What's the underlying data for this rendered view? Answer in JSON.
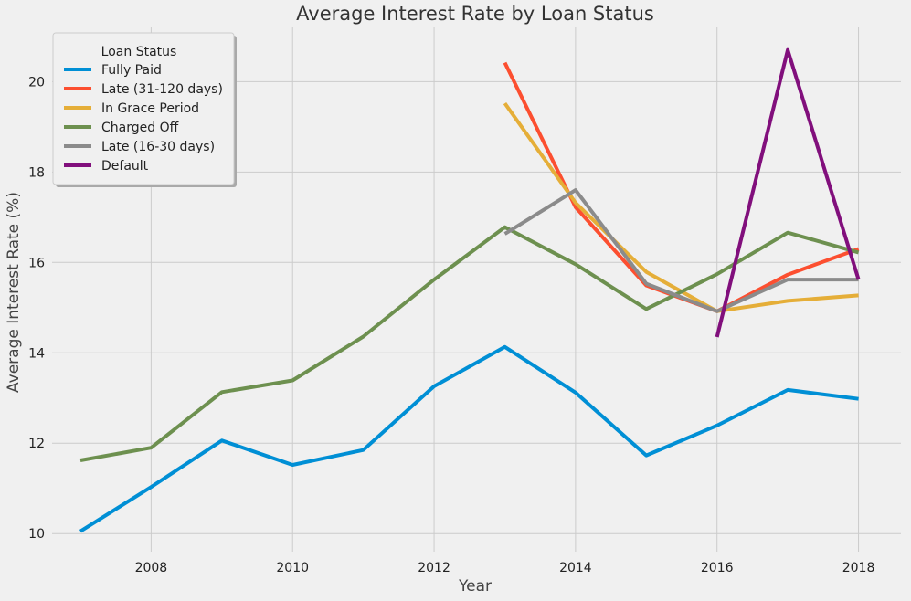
{
  "chart_data": {
    "type": "line",
    "title": "Average Interest Rate by Loan Status",
    "xlabel": "Year",
    "ylabel": "Average Interest Rate (%)",
    "xlim": [
      2006.6,
      2018.6
    ],
    "ylim": [
      9.6,
      21.2
    ],
    "xticks": [
      2008,
      2010,
      2012,
      2014,
      2016,
      2018
    ],
    "yticks": [
      10,
      12,
      14,
      16,
      18,
      20
    ],
    "grid": true,
    "legend": {
      "title": "Loan Status",
      "placement": "top-left"
    },
    "series": [
      {
        "name": "Fully Paid",
        "color": "#008fd5",
        "x": [
          2007,
          2008,
          2009,
          2010,
          2011,
          2012,
          2013,
          2014,
          2015,
          2016,
          2017,
          2018
        ],
        "values": [
          10.05,
          11.03,
          12.06,
          11.52,
          11.85,
          13.26,
          14.13,
          13.12,
          11.73,
          12.39,
          13.18,
          12.98
        ]
      },
      {
        "name": "Late (31-120 days)",
        "color": "#fc4f30",
        "x": [
          2013,
          2014,
          2015,
          2016,
          2017,
          2018
        ],
        "values": [
          20.42,
          17.22,
          15.49,
          14.92,
          15.73,
          16.3
        ]
      },
      {
        "name": "In Grace Period",
        "color": "#e5ae38",
        "x": [
          2013,
          2014,
          2015,
          2016,
          2017,
          2018
        ],
        "values": [
          19.52,
          17.32,
          15.79,
          14.92,
          15.15,
          15.27
        ]
      },
      {
        "name": "Charged Off",
        "color": "#6d904f",
        "x": [
          2007,
          2008,
          2009,
          2010,
          2011,
          2012,
          2013,
          2014,
          2015,
          2016,
          2017,
          2018
        ],
        "values": [
          11.62,
          11.9,
          13.13,
          13.39,
          14.36,
          15.62,
          16.78,
          15.96,
          14.97,
          15.74,
          16.66,
          16.22
        ]
      },
      {
        "name": "Late (16-30 days)",
        "color": "#8b8b8b",
        "x": [
          2013,
          2014,
          2015,
          2016,
          2017,
          2018
        ],
        "values": [
          16.63,
          17.6,
          15.53,
          14.92,
          15.62,
          15.62
        ]
      },
      {
        "name": "Default",
        "color": "#810f7c",
        "x": [
          2016,
          2017,
          2018
        ],
        "values": [
          14.35,
          20.7,
          15.62
        ]
      }
    ]
  }
}
